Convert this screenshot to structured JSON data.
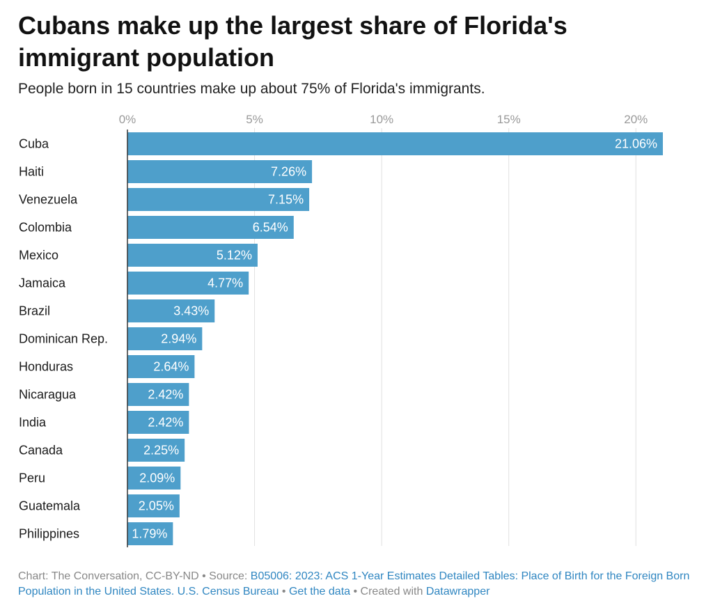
{
  "header": {
    "title": "Cubans make up the largest share of Florida's immigrant population",
    "subtitle": "People born in 15 countries make up about 75% of Florida's immigrants."
  },
  "chart_data": {
    "type": "bar",
    "orientation": "horizontal",
    "categories": [
      "Cuba",
      "Haiti",
      "Venezuela",
      "Colombia",
      "Mexico",
      "Jamaica",
      "Brazil",
      "Dominican Rep.",
      "Honduras",
      "Nicaragua",
      "India",
      "Canada",
      "Peru",
      "Guatemala",
      "Philippines"
    ],
    "values": [
      21.06,
      7.26,
      7.15,
      6.54,
      5.12,
      4.77,
      3.43,
      2.94,
      2.64,
      2.42,
      2.42,
      2.25,
      2.09,
      2.05,
      1.79
    ],
    "value_labels": [
      "21.06%",
      "7.26%",
      "7.15%",
      "6.54%",
      "5.12%",
      "4.77%",
      "3.43%",
      "2.94%",
      "2.64%",
      "2.42%",
      "2.42%",
      "2.25%",
      "2.09%",
      "2.05%",
      "1.79%"
    ],
    "xticks": [
      0,
      5,
      10,
      15,
      20
    ],
    "xtick_labels": [
      "0%",
      "5%",
      "10%",
      "15%",
      "20%"
    ],
    "xlim": [
      0,
      21.06
    ],
    "grid": true,
    "bar_color": "#4e9fcb"
  },
  "footer": {
    "credit": "Chart: The Conversation, CC-BY-ND",
    "source_label": "Source:",
    "source_link": "B05006: 2023: ACS 1-Year Estimates Detailed Tables: Place of Birth for the Foreign Born Population in the United States. U.S. Census Bureau",
    "get_data": "Get the data",
    "created_with": "Created with",
    "tool": "Datawrapper",
    "separator": "•"
  },
  "colors": {
    "link": "#2f86c1",
    "grid": "#e0e0e0",
    "axis": "#333333"
  }
}
